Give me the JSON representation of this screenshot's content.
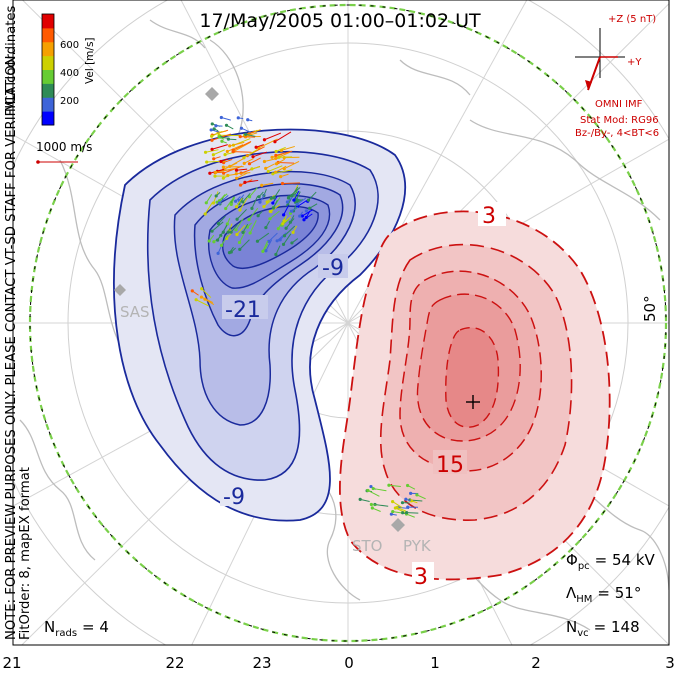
{
  "title": "17/May/2005 01:00–01:02 UT",
  "side_note": {
    "line1": "NOTE: FOR PREVIEW PURPOSES ONLY. PLEASE CONTACT VT-SD STAFF FOR VERIFICATION.",
    "line2": "FitOrder: 8, mapEX format",
    "coords": "MLT coordinates"
  },
  "colorbar": {
    "label": "Vel [m/s]",
    "ticks": [
      "600",
      "400",
      "200"
    ],
    "colors": [
      "#0000ff",
      "#3e64d8",
      "#2e8b57",
      "#66cc33",
      "#ccd000",
      "#f5a000",
      "#ff5a00",
      "#e00000"
    ]
  },
  "scale_vector": {
    "label": "1000 m/s"
  },
  "imf": {
    "z_label": "+Z (5 nT)",
    "y_label": "+Y",
    "source": "OMNI IMF",
    "model": "Stat Mod: RG96",
    "condition": "Bz-/By-, 4<BT<6"
  },
  "latitude_label": "50°",
  "contour_labels": [
    "3",
    "-9",
    "-21",
    "15",
    "-9",
    "3"
  ],
  "stations": [
    "SAS",
    "STO",
    "PYK"
  ],
  "stats": {
    "phi_pc": {
      "symbol": "Φ",
      "sub": "pc",
      "value": "= 54 kV"
    },
    "lambda_hm": {
      "symbol": "Λ",
      "sub": "HM",
      "value": "= 51°"
    },
    "n_vc": {
      "symbol": "N",
      "sub": "vc",
      "value": "= 148"
    },
    "n_rads": {
      "symbol": "N",
      "sub": "rads",
      "value": "= 4"
    }
  },
  "mlt_axis": [
    "21",
    "22",
    "23",
    "0",
    "1",
    "2",
    "3"
  ],
  "colors": {
    "negative_cell": "#3340c8",
    "positive_cell": "#dd2222",
    "hm_boundary": "#7ad04a"
  }
}
